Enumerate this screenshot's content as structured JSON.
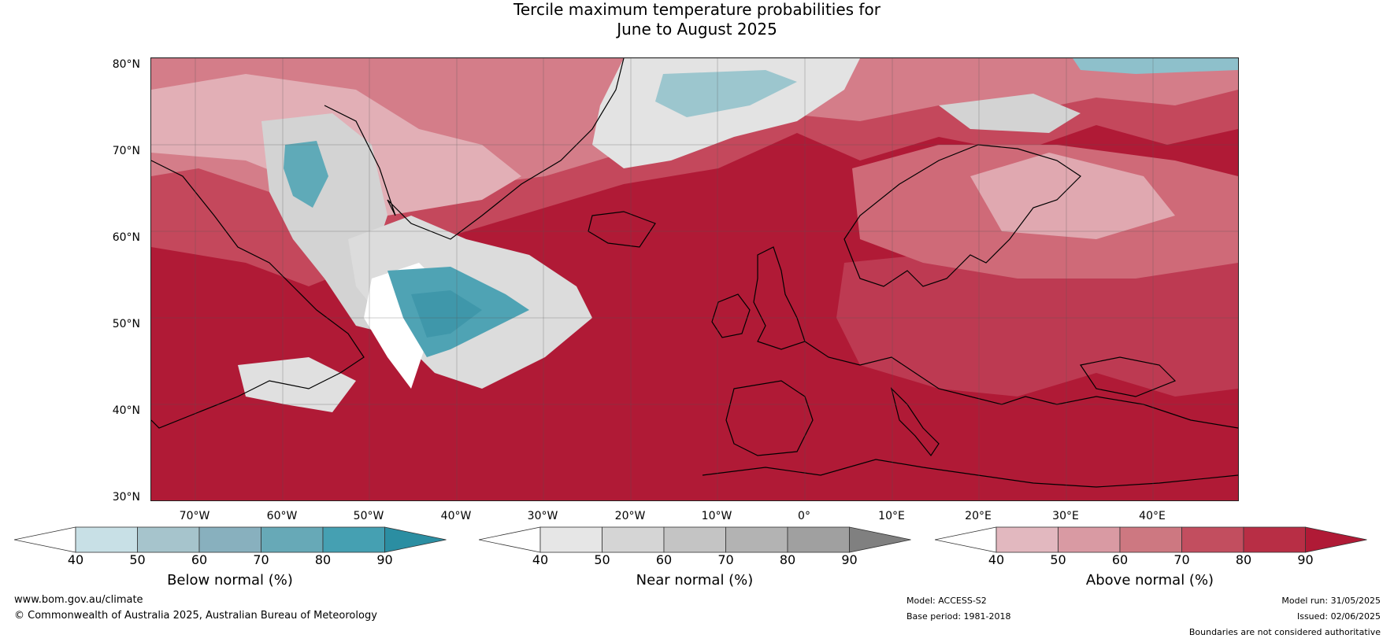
{
  "title": {
    "line1": "Tercile maximum temperature probabilities for",
    "line2": "June to August 2025"
  },
  "map": {
    "lat_labels": [
      "80°N",
      "70°N",
      "60°N",
      "50°N",
      "40°N",
      "30°N"
    ],
    "lon_labels": [
      "70°W",
      "60°W",
      "50°W",
      "40°W",
      "30°W",
      "20°W",
      "10°W",
      "0°",
      "10°E",
      "20°E",
      "30°E",
      "40°E"
    ],
    "colors": {
      "above_90": "#b01a36",
      "above_80": "#bd3a52",
      "above_70": "#cc6473",
      "above_60": "#d98e98",
      "above_50": "#e6b8be",
      "near": "#d4d4d4",
      "near_light": "#e6e6e6",
      "below_70": "#5faab8",
      "below_50": "#a3c6cd",
      "white": "#ffffff"
    }
  },
  "colorbars": [
    {
      "label": "Below normal (%)",
      "ticks": [
        "40",
        "50",
        "60",
        "70",
        "80",
        "90"
      ],
      "colors": [
        "#ffffff",
        "#c8e0e6",
        "#a6c4cc",
        "#88b0be",
        "#67a9b7",
        "#45a0b2",
        "#2b8ea2"
      ]
    },
    {
      "label": "Near normal (%)",
      "ticks": [
        "40",
        "50",
        "60",
        "70",
        "80",
        "90"
      ],
      "colors": [
        "#ffffff",
        "#e6e6e6",
        "#d5d5d5",
        "#c4c4c4",
        "#b3b3b3",
        "#a0a0a0",
        "#808080"
      ]
    },
    {
      "label": "Above normal (%)",
      "ticks": [
        "40",
        "50",
        "60",
        "70",
        "80",
        "90"
      ],
      "colors": [
        "#ffffff",
        "#e2b8bf",
        "#d99aa3",
        "#cd7881",
        "#c24e5f",
        "#b82e45",
        "#b01a36"
      ]
    }
  ],
  "footer": {
    "url": "www.bom.gov.au/climate",
    "copyright": "© Commonwealth of Australia 2025, Australian Bureau of Meteorology",
    "model": "Model: ACCESS-S2",
    "base_period": "Base period: 1981-2018",
    "model_run": "Model run: 31/05/2025",
    "issued": "Issued: 02/06/2025",
    "disclaimer": "Boundaries are not considered authoritative"
  }
}
